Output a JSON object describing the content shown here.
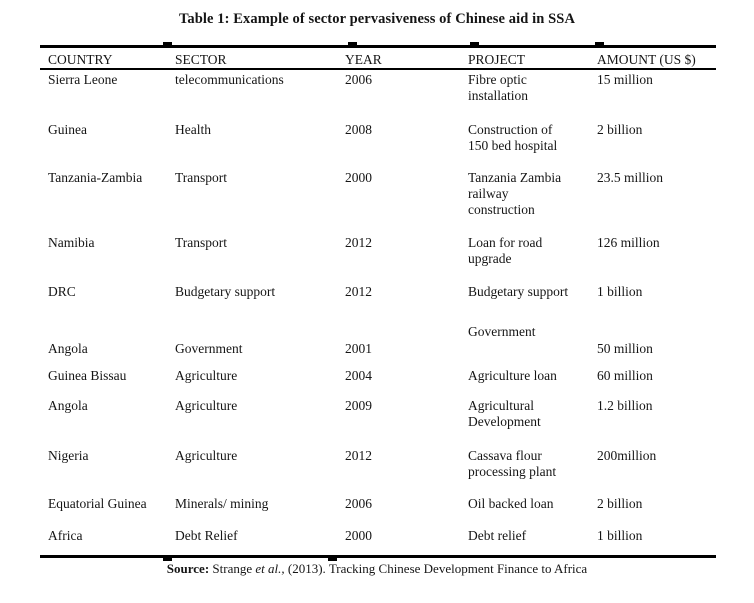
{
  "title": "Table 1: Example of sector pervasiveness of Chinese aid in SSA",
  "table": {
    "headers": [
      "COUNTRY",
      "SECTOR",
      "YEAR",
      "PROJECT",
      "AMOUNT (US $)"
    ],
    "rows": [
      {
        "country": "Sierra Leone",
        "sector": "telecommunications",
        "year": "2006",
        "project": "Fibre optic\ninstallation",
        "amount": "15 million"
      },
      {
        "country": "Guinea",
        "sector": "Health",
        "year": "2008",
        "project": "Construction of\n150 bed hospital",
        "amount": "2 billion"
      },
      {
        "country": "Tanzania-Zambia",
        "sector": "Transport",
        "year": "2000",
        "project": "Tanzania Zambia\nrailway\nconstruction",
        "amount": "23.5 million"
      },
      {
        "country": "Namibia",
        "sector": "Transport",
        "year": "2012",
        "project": "Loan for road\nupgrade",
        "amount": "126 million"
      },
      {
        "country": "DRC",
        "sector": "Budgetary support",
        "year": "2012",
        "project": "Budgetary support",
        "amount": "1 billion"
      },
      {
        "country": "Angola",
        "sector": "Government",
        "year": "2001",
        "project": "Government",
        "amount": "50 million"
      },
      {
        "country": "Guinea Bissau",
        "sector": "Agriculture",
        "year": "2004",
        "project": "Agriculture loan",
        "amount": "60 million"
      },
      {
        "country": "Angola",
        "sector": "Agriculture",
        "year": "2009",
        "project": "Agricultural\nDevelopment",
        "amount": "1.2 billion"
      },
      {
        "country": "Nigeria",
        "sector": "Agriculture",
        "year": "2012",
        "project": "Cassava flour\nprocessing plant",
        "amount": "200million"
      },
      {
        "country": "Equatorial Guinea",
        "sector": "Minerals/ mining",
        "year": "2006",
        "project": "Oil backed loan",
        "amount": "2 billion"
      },
      {
        "country": "Africa",
        "sector": "Debt Relief",
        "year": "2000",
        "project": "Debt relief",
        "amount": "1 billion"
      }
    ]
  },
  "source": {
    "label": "Source:",
    "authors": " Strange ",
    "etal": "et al.,",
    "rest": " (2013). Tracking Chinese Development Finance to Africa"
  }
}
